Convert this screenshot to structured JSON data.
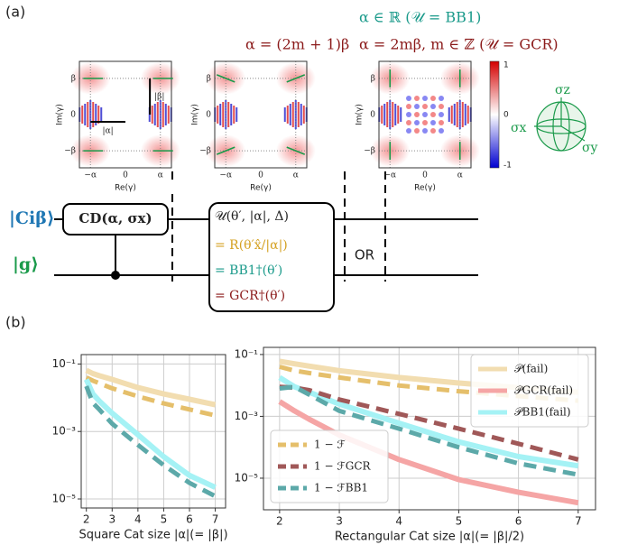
{
  "panel_labels": {
    "a": "(a)",
    "b": "(b)"
  },
  "annotations": {
    "odd": "α = (2m + 1)β",
    "real": "α ∈ ℝ (𝒰 = BB1)",
    "even": "α = 2mβ, m ∈ ℤ (𝒰 = GCR)"
  },
  "wigner_plots": [
    {
      "ylabel": "Im(γ)",
      "xlabel": "Re(γ)",
      "yticks": [
        "β",
        "0",
        "−β"
      ],
      "xticks": [
        "−α",
        "0",
        "α"
      ],
      "beta_label": "|β|",
      "alpha_label": "|α|"
    },
    {
      "ylabel": "Im(γ)",
      "xlabel": "Re(γ)",
      "yticks": [
        "β",
        "0",
        "−β"
      ],
      "xticks": [
        "−α",
        "0",
        "α"
      ]
    },
    {
      "ylabel": "Im(γ)",
      "xlabel": "Re(γ)",
      "yticks": [
        "β",
        "0",
        "−β"
      ],
      "xticks": [
        "−α",
        "0",
        "α"
      ]
    }
  ],
  "colorbar": {
    "ticks": [
      "1",
      "0",
      "-1"
    ]
  },
  "bloch": {
    "z": "σz",
    "x": "σx",
    "y": "σy"
  },
  "circuit": {
    "qubit_cat": "|Ciβ⟩",
    "qubit_g": "|g⟩",
    "cd_gate": "CD(α, σx)",
    "u_gate": "𝒰(θ′, |α|, Δ)",
    "u_r": "= R(θ′x̂/|α|)",
    "u_bb1": "= BB1†(θ′)",
    "u_gcr": "= GCR†(θ′)",
    "or": "OR"
  },
  "chart_data": [
    {
      "type": "line",
      "yscale": "log",
      "grid": true,
      "xlabel": "Square Cat size |α|(= |β|)",
      "xlim": [
        1.8,
        7.4
      ],
      "xticks": [
        2,
        3,
        4,
        5,
        6,
        7
      ],
      "ylim": [
        5.4e-06,
        0.19
      ],
      "yticks": [
        {
          "value": 0.1,
          "label": "10⁻¹"
        },
        {
          "value": 0.001,
          "label": "10⁻³"
        },
        {
          "value": 1e-05,
          "label": "10⁻⁵"
        }
      ],
      "x": [
        2,
        2.25,
        2.5,
        3,
        4,
        5,
        6,
        7
      ],
      "series": [
        {
          "color": "#f2ddb0",
          "linestyle": "solid",
          "values": [
            0.065,
            0.052,
            0.045,
            0.035,
            0.02,
            0.013,
            0.009,
            0.0062
          ]
        },
        {
          "color": "#e5bf6b",
          "linestyle": "dashed",
          "values": [
            0.04,
            0.032,
            0.027,
            0.019,
            0.011,
            0.0068,
            0.0045,
            0.003
          ]
        },
        {
          "color": "#a5f2f5",
          "linestyle": "solid",
          "values": [
            0.035,
            0.013,
            0.008,
            0.0035,
            0.0008,
            0.00018,
            5e-05,
            2.2e-05
          ]
        },
        {
          "color": "#5ca9a9",
          "linestyle": "dashed",
          "values": [
            0.022,
            0.007,
            0.0045,
            0.0017,
            0.0004,
            0.0001,
            3e-05,
            1.2e-05
          ]
        }
      ]
    },
    {
      "type": "line",
      "yscale": "log",
      "grid": true,
      "xlabel": "Rectangular Cat size |α|(= |β|/2)",
      "xlim": [
        1.73,
        7.29
      ],
      "xticks": [
        2,
        3,
        4,
        5,
        6,
        7
      ],
      "ylim": [
        9.5e-07,
        0.17
      ],
      "yticks": [
        {
          "value": 0.1,
          "label": "10⁻¹"
        },
        {
          "value": 0.001,
          "label": "10⁻³"
        },
        {
          "value": 1e-05,
          "label": "10⁻⁵"
        }
      ],
      "x": [
        2,
        2.25,
        2.5,
        3,
        4,
        5,
        6,
        7
      ],
      "series": [
        {
          "name": "𝒫(fail)",
          "legend_loc": "upper right",
          "color": "#f2ddb0",
          "linestyle": "solid",
          "values": [
            0.06,
            0.05,
            0.042,
            0.03,
            0.018,
            0.012,
            0.0085,
            0.006
          ]
        },
        {
          "name": "𝒫GCR(fail)",
          "legend_loc": "upper right",
          "color": "#f5a5a5",
          "linestyle": "solid",
          "values": [
            0.003,
            0.0015,
            0.0008,
            0.00025,
            4e-05,
            9e-06,
            3.5e-06,
            1.6e-06
          ]
        },
        {
          "name": "𝒫BB1(fail)",
          "legend_loc": "upper right",
          "color": "#a5f2f5",
          "linestyle": "solid",
          "values": [
            0.018,
            0.009,
            0.006,
            0.0025,
            0.0006,
            0.00015,
            5e-05,
            2.5e-05
          ]
        },
        {
          "name": "1 − ℱ",
          "legend_loc": "lower left",
          "color": "#e5bf6b",
          "linestyle": "dashed",
          "values": [
            0.04,
            0.03,
            0.025,
            0.018,
            0.01,
            0.0065,
            0.0045,
            0.0032
          ]
        },
        {
          "name": "1 − ℱGCR",
          "legend_loc": "lower left",
          "color": "#a05858",
          "linestyle": "dashed",
          "values": [
            0.009,
            0.0085,
            0.007,
            0.0035,
            0.0012,
            0.0004,
            0.00013,
            4e-05
          ]
        },
        {
          "name": "1 − ℱBB1",
          "legend_loc": "lower left",
          "color": "#5ca9a9",
          "linestyle": "dashed",
          "values": [
            0.008,
            0.009,
            0.005,
            0.0015,
            0.0004,
            0.0001,
            3e-05,
            1.3e-05
          ]
        }
      ]
    }
  ]
}
